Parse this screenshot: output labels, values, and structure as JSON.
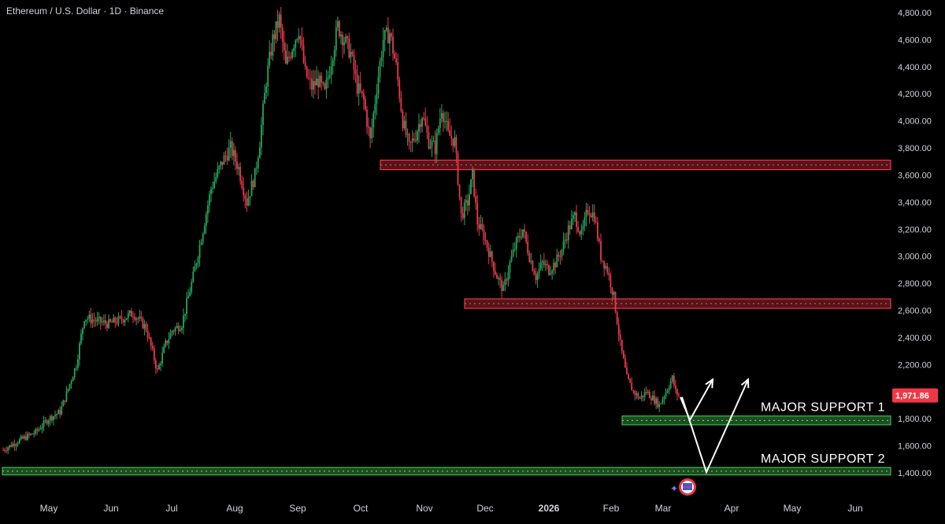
{
  "header": {
    "title": "Ethereum / U.S. Dollar · 1D · Binance"
  },
  "colors": {
    "background": "#000000",
    "up": "#26a65b",
    "down": "#e8394b",
    "resistance_fill": "#5a1318",
    "resistance_border": "#e8394b",
    "support_fill": "#1b4d1f",
    "support_border": "#3fb950",
    "price_tag": "#f23645",
    "arrow": "#ffffff",
    "text": "#d1d4dc"
  },
  "chart_data": {
    "type": "candlestick",
    "title": "Ethereum / U.S. Dollar · 1D · Binance",
    "y_ticks": [
      "1,400.00",
      "1,600.00",
      "1,800.00",
      "2,000.00",
      "2,200.00",
      "2,400.00",
      "2,600.00",
      "2,800.00",
      "3,000.00",
      "3,200.00",
      "3,400.00",
      "3,600.00",
      "3,800.00",
      "4,000.00",
      "4,200.00",
      "4,400.00",
      "4,600.00",
      "4,800.00"
    ],
    "y_tick_values": [
      1400,
      1600,
      1800,
      2000,
      2200,
      2400,
      2600,
      2800,
      3000,
      3200,
      3400,
      3600,
      3800,
      4000,
      4200,
      4400,
      4600,
      4800
    ],
    "ylim": [
      1330,
      4880
    ],
    "x_ticks": [
      "May",
      "Jun",
      "Jul",
      "Aug",
      "Sep",
      "Oct",
      "Nov",
      "Dec",
      "2026",
      "Feb",
      "Mar",
      "Apr",
      "May",
      "Jun"
    ],
    "last_price": "1,971.86",
    "last_price_value": 1971.86,
    "path_points": [
      [
        0,
        1570
      ],
      [
        10,
        1640
      ],
      [
        20,
        1700
      ],
      [
        28,
        1800
      ],
      [
        35,
        1850
      ],
      [
        38,
        1950
      ],
      [
        45,
        2200
      ],
      [
        50,
        2550
      ],
      [
        58,
        2520
      ],
      [
        65,
        2500
      ],
      [
        72,
        2530
      ],
      [
        80,
        2580
      ],
      [
        88,
        2470
      ],
      [
        95,
        2150
      ],
      [
        100,
        2350
      ],
      [
        104,
        2450
      ],
      [
        110,
        2500
      ],
      [
        117,
        2850
      ],
      [
        123,
        3200
      ],
      [
        128,
        3500
      ],
      [
        135,
        3700
      ],
      [
        140,
        3800
      ],
      [
        145,
        3650
      ],
      [
        150,
        3400
      ],
      [
        155,
        3600
      ],
      [
        158,
        3850
      ],
      [
        162,
        4300
      ],
      [
        166,
        4600
      ],
      [
        170,
        4750
      ],
      [
        174,
        4400
      ],
      [
        178,
        4550
      ],
      [
        182,
        4680
      ],
      [
        186,
        4350
      ],
      [
        190,
        4250
      ],
      [
        194,
        4300
      ],
      [
        198,
        4200
      ],
      [
        202,
        4450
      ],
      [
        206,
        4700
      ],
      [
        210,
        4600
      ],
      [
        214,
        4500
      ],
      [
        218,
        4250
      ],
      [
        222,
        4150
      ],
      [
        226,
        3850
      ],
      [
        230,
        4250
      ],
      [
        234,
        4600
      ],
      [
        238,
        4650
      ],
      [
        242,
        4400
      ],
      [
        246,
        4000
      ],
      [
        250,
        3800
      ],
      [
        254,
        3900
      ],
      [
        258,
        4050
      ],
      [
        262,
        3850
      ],
      [
        266,
        3800
      ],
      [
        270,
        4100
      ],
      [
        274,
        3900
      ],
      [
        278,
        3850
      ],
      [
        282,
        3300
      ],
      [
        286,
        3400
      ],
      [
        289,
        3600
      ],
      [
        292,
        3250
      ],
      [
        296,
        3150
      ],
      [
        300,
        3000
      ],
      [
        304,
        2850
      ],
      [
        308,
        2750
      ],
      [
        312,
        2950
      ],
      [
        316,
        3100
      ],
      [
        320,
        3200
      ],
      [
        324,
        3000
      ],
      [
        328,
        2850
      ],
      [
        332,
        2950
      ],
      [
        336,
        2900
      ],
      [
        340,
        2950
      ],
      [
        344,
        3050
      ],
      [
        348,
        3200
      ],
      [
        352,
        3300
      ],
      [
        356,
        3150
      ],
      [
        360,
        3350
      ],
      [
        364,
        3300
      ],
      [
        368,
        3000
      ],
      [
        372,
        2900
      ],
      [
        376,
        2700
      ],
      [
        380,
        2350
      ],
      [
        384,
        2100
      ],
      [
        388,
        2000
      ],
      [
        392,
        1950
      ],
      [
        396,
        2000
      ],
      [
        400,
        1950
      ],
      [
        404,
        1900
      ],
      [
        408,
        2000
      ],
      [
        412,
        2100
      ],
      [
        414,
        2000
      ],
      [
        416,
        1971.86
      ]
    ],
    "resistance_zones": [
      {
        "name": "resistance-zone-upper",
        "low": 3640,
        "high": 3710
      },
      {
        "name": "resistance-zone-lower",
        "low": 2615,
        "high": 2685
      }
    ],
    "support_zones": [
      {
        "name": "major-support-1",
        "label": "MAJOR SUPPORT 1",
        "low": 1755,
        "high": 1820
      },
      {
        "name": "major-support-2",
        "label": "MAJOR SUPPORT 2",
        "low": 1385,
        "high": 1440
      }
    ],
    "projection": {
      "path_a": [
        [
          1960,
          "now"
        ],
        [
          1790,
          "dip"
        ],
        [
          2090,
          "up"
        ]
      ],
      "path_b": [
        [
          1960,
          "now"
        ],
        [
          1405,
          "deep-dip"
        ],
        [
          2090,
          "up"
        ]
      ]
    }
  }
}
